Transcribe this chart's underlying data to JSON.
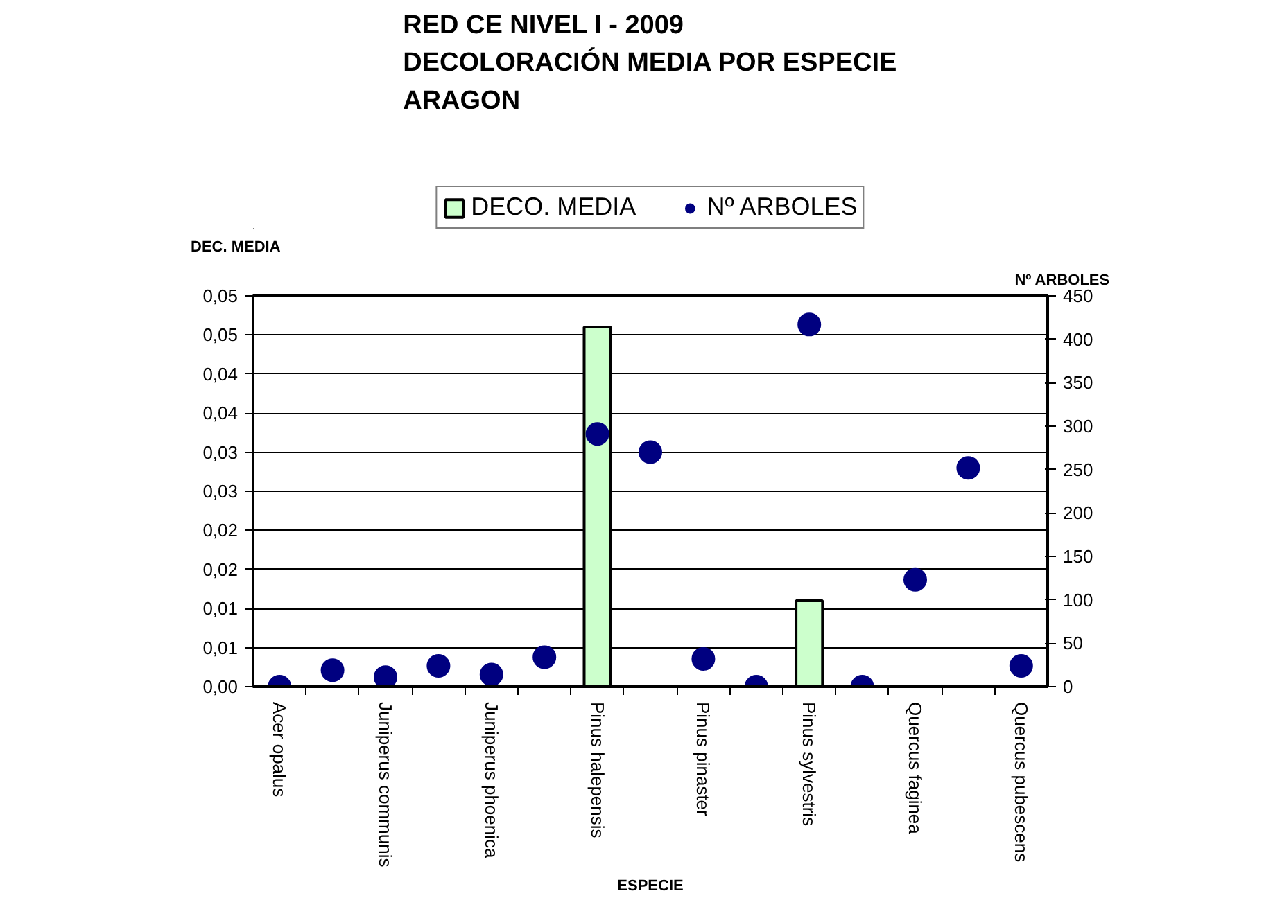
{
  "chart_data": {
    "type": "bar",
    "title": "RED CE NIVEL I - 2009\nDECOLORACIÓN MEDIA POR ESPECIE\nARAGON",
    "xlabel": "ESPECIE",
    "ylabel": "DEC. MEDIA",
    "y2label": "Nº ARBOLES",
    "categories": [
      "Acer opalus",
      null,
      "Juniperus communis",
      null,
      "Juniperus phoenica",
      null,
      "Pinus halepensis",
      null,
      "Pinus pinaster",
      null,
      "Pinus sylvestris",
      null,
      "Quercus faginea",
      null,
      "Quercus pubescens"
    ],
    "series": [
      {
        "name": "DECO. MEDIA",
        "color": "#ccffcc",
        "values": [
          null,
          null,
          null,
          null,
          null,
          null,
          0.046,
          null,
          null,
          null,
          0.011,
          null,
          null,
          null,
          null
        ]
      },
      {
        "name": "Nº ARBOLES",
        "type": "scatter",
        "axis": "y2",
        "color": "#000080",
        "values": [
          0,
          19,
          11,
          24,
          14,
          34,
          291,
          270,
          32,
          0,
          417,
          0,
          123,
          252,
          24
        ]
      }
    ],
    "ylim": [
      0,
      0.05
    ],
    "yticks": [
      {
        "value": 0,
        "label": "0,00"
      },
      {
        "value": 0.005,
        "label": "0,01"
      },
      {
        "value": 0.01,
        "label": "0,01"
      },
      {
        "value": 0.015,
        "label": "0,02"
      },
      {
        "value": 0.02,
        "label": "0,02"
      },
      {
        "value": 0.025,
        "label": "0,03"
      },
      {
        "value": 0.03,
        "label": "0,03"
      },
      {
        "value": 0.035,
        "label": "0,04"
      },
      {
        "value": 0.04,
        "label": "0,04"
      },
      {
        "value": 0.045,
        "label": "0,05"
      },
      {
        "value": 0.05,
        "label": "0,05"
      }
    ],
    "y2lim": [
      0,
      450
    ],
    "y2ticks": [
      0,
      50,
      100,
      150,
      200,
      250,
      300,
      350,
      400,
      450
    ],
    "grid": "y",
    "legend": "top",
    "marker": "circle"
  }
}
